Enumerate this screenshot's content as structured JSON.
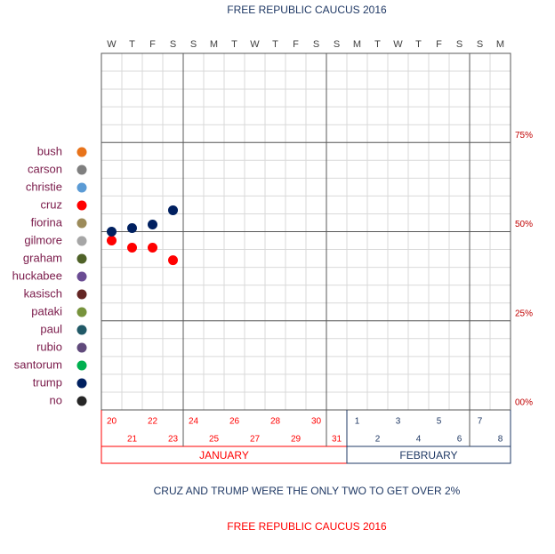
{
  "chart_data": {
    "type": "dot",
    "title": "FREE REPUBLIC CAUCUS 2016",
    "annotation": "CRUZ AND TRUMP WERE THE ONLY TWO TO GET OVER 2%",
    "footer": "FREE REPUBLIC CAUCUS 2016",
    "weekdays": [
      "W",
      "T",
      "F",
      "S",
      "S",
      "M",
      "T",
      "W",
      "T",
      "F",
      "S",
      "S",
      "M",
      "T",
      "W",
      "T",
      "F",
      "S",
      "S",
      "M"
    ],
    "categories": [
      "20",
      "21",
      "22",
      "23",
      "24",
      "25",
      "26",
      "27",
      "28",
      "29",
      "30",
      "31",
      "1",
      "2",
      "3",
      "4",
      "5",
      "6",
      "7",
      "8"
    ],
    "months": [
      {
        "label": "JANUARY",
        "color": "#ff0000"
      },
      {
        "label": "FEBRUARY",
        "color": "#1f3864"
      }
    ],
    "ylim": [
      0,
      100
    ],
    "yticks": [
      {
        "value": 0,
        "label": "00%"
      },
      {
        "value": 25,
        "label": "25%"
      },
      {
        "value": 50,
        "label": "50%"
      },
      {
        "value": 75,
        "label": "75%"
      }
    ],
    "grid": {
      "minor_step": 5
    },
    "series": [
      {
        "name": "bush",
        "color": "#e8731a",
        "values": [
          null,
          null,
          null,
          null,
          null,
          null,
          null,
          null,
          null,
          null,
          null,
          null,
          null,
          null,
          null,
          null,
          null,
          null,
          null,
          null
        ]
      },
      {
        "name": "carson",
        "color": "#7f7f7f",
        "values": [
          null,
          null,
          null,
          null,
          null,
          null,
          null,
          null,
          null,
          null,
          null,
          null,
          null,
          null,
          null,
          null,
          null,
          null,
          null,
          null
        ]
      },
      {
        "name": "christie",
        "color": "#5b9bd5",
        "values": [
          null,
          null,
          null,
          null,
          null,
          null,
          null,
          null,
          null,
          null,
          null,
          null,
          null,
          null,
          null,
          null,
          null,
          null,
          null,
          null
        ]
      },
      {
        "name": "cruz",
        "color": "#ff0000",
        "values": [
          47.5,
          45.5,
          45.5,
          42,
          null,
          null,
          null,
          null,
          null,
          null,
          null,
          null,
          null,
          null,
          null,
          null,
          null,
          null,
          null,
          null
        ]
      },
      {
        "name": "fiorina",
        "color": "#9c8b5a",
        "values": [
          null,
          null,
          null,
          null,
          null,
          null,
          null,
          null,
          null,
          null,
          null,
          null,
          null,
          null,
          null,
          null,
          null,
          null,
          null,
          null
        ]
      },
      {
        "name": "gilmore",
        "color": "#a6a6a6",
        "values": [
          null,
          null,
          null,
          null,
          null,
          null,
          null,
          null,
          null,
          null,
          null,
          null,
          null,
          null,
          null,
          null,
          null,
          null,
          null,
          null
        ]
      },
      {
        "name": "graham",
        "color": "#4f6228",
        "values": [
          null,
          null,
          null,
          null,
          null,
          null,
          null,
          null,
          null,
          null,
          null,
          null,
          null,
          null,
          null,
          null,
          null,
          null,
          null,
          null
        ]
      },
      {
        "name": "huckabee",
        "color": "#6a4c93",
        "values": [
          null,
          null,
          null,
          null,
          null,
          null,
          null,
          null,
          null,
          null,
          null,
          null,
          null,
          null,
          null,
          null,
          null,
          null,
          null,
          null
        ]
      },
      {
        "name": "kasisch",
        "color": "#632523",
        "values": [
          null,
          null,
          null,
          null,
          null,
          null,
          null,
          null,
          null,
          null,
          null,
          null,
          null,
          null,
          null,
          null,
          null,
          null,
          null,
          null
        ]
      },
      {
        "name": "pataki",
        "color": "#77933c",
        "values": [
          null,
          null,
          null,
          null,
          null,
          null,
          null,
          null,
          null,
          null,
          null,
          null,
          null,
          null,
          null,
          null,
          null,
          null,
          null,
          null
        ]
      },
      {
        "name": "paul",
        "color": "#215967",
        "values": [
          null,
          null,
          null,
          null,
          null,
          null,
          null,
          null,
          null,
          null,
          null,
          null,
          null,
          null,
          null,
          null,
          null,
          null,
          null,
          null
        ]
      },
      {
        "name": "rubio",
        "color": "#604a7b",
        "values": [
          null,
          null,
          null,
          null,
          null,
          null,
          null,
          null,
          null,
          null,
          null,
          null,
          null,
          null,
          null,
          null,
          null,
          null,
          null,
          null
        ]
      },
      {
        "name": "santorum",
        "color": "#00b050",
        "values": [
          null,
          null,
          null,
          null,
          null,
          null,
          null,
          null,
          null,
          null,
          null,
          null,
          null,
          null,
          null,
          null,
          null,
          null,
          null,
          null
        ]
      },
      {
        "name": "trump",
        "color": "#002060",
        "values": [
          50,
          51,
          52,
          56,
          null,
          null,
          null,
          null,
          null,
          null,
          null,
          null,
          null,
          null,
          null,
          null,
          null,
          null,
          null,
          null
        ]
      },
      {
        "name": "no",
        "color": "#262626",
        "values": [
          null,
          null,
          null,
          null,
          null,
          null,
          null,
          null,
          null,
          null,
          null,
          null,
          null,
          null,
          null,
          null,
          null,
          null,
          null,
          null
        ]
      }
    ]
  }
}
